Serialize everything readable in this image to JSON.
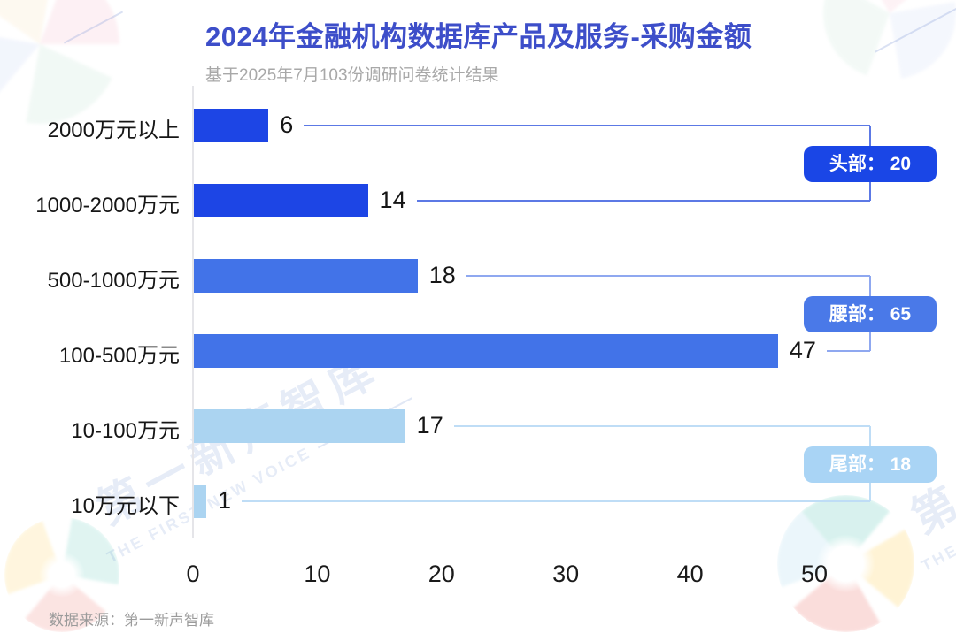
{
  "header": {
    "title": "2024年金融机构数据库产品及服务-采购金额",
    "subtitle": "基于2025年7月103份调研问卷统计结果"
  },
  "footer": {
    "source": "数据来源：第一新声智库"
  },
  "watermark": {
    "cn": "第一新声智库",
    "en": "THE FIRST NEW VOICE"
  },
  "colors": {
    "title": "#3D4EC9",
    "subtitle": "#A8A8A8",
    "axis": "#E5E5E9",
    "text": "#161616"
  },
  "chart_data": {
    "type": "bar",
    "orientation": "horizontal",
    "title": "2024年金融机构数据库产品及服务-采购金额",
    "subtitle": "基于2025年7月103份调研问卷统计结果",
    "categories": [
      "2000万元以上",
      "1000-2000万元",
      "500-1000万元",
      "100-500万元",
      "10-100万元",
      "10万元以下"
    ],
    "values": [
      6,
      14,
      18,
      47,
      17,
      1
    ],
    "value_labels": [
      "6",
      "14",
      "18",
      "47",
      "17",
      "1"
    ],
    "bar_colors": [
      "#1D45E5",
      "#1D45E5",
      "#4273E8",
      "#4273E8",
      "#ABD4F1",
      "#ABD4F1"
    ],
    "xlim": [
      0,
      55
    ],
    "x_ticks": [
      "0",
      "10",
      "20",
      "30",
      "40",
      "50"
    ],
    "grid": false,
    "legend": false,
    "groups": [
      {
        "label": "头部",
        "value": 20,
        "display": "头部： 20",
        "rows": [
          0,
          1
        ],
        "badge_color": "#1A46E6",
        "line_color": "#5C79E5"
      },
      {
        "label": "腰部",
        "value": 65,
        "display": "腰部： 65",
        "rows": [
          2,
          3
        ],
        "badge_color": "#4A79E8",
        "line_color": "#8FA8F0"
      },
      {
        "label": "尾部",
        "value": 18,
        "display": "尾部： 18",
        "rows": [
          4,
          5
        ],
        "badge_color": "#A9D4F5",
        "line_color": "#BFDDF6"
      }
    ]
  }
}
